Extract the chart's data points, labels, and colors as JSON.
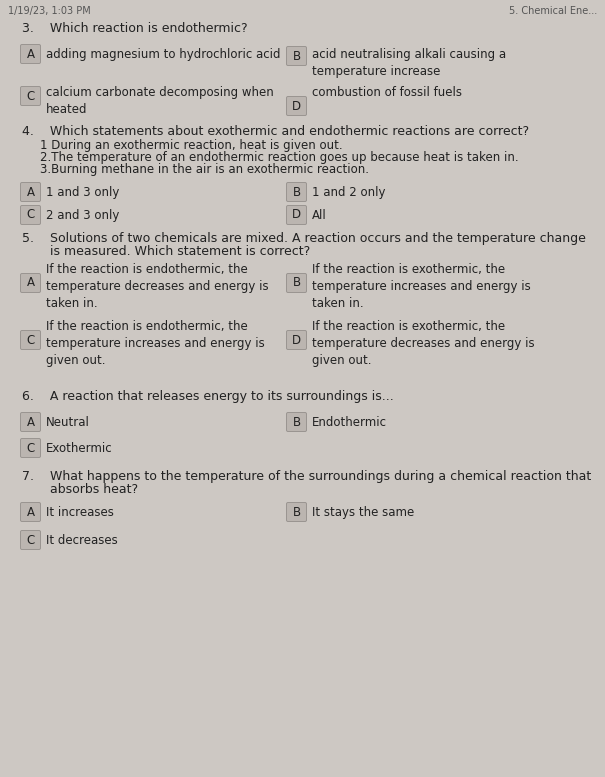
{
  "bg_color": "#cdc8c3",
  "header_left": "1/19/23, 1:03 PM",
  "header_right": "5. Chemical Ene...",
  "box_color": "#bbb5b0",
  "box_edge": "#999490",
  "text_color": "#222222",
  "body_fontsize": 8.5,
  "question_fontsize": 9.0,
  "header_fontsize": 7.0,
  "q3_title": "3.    Which reaction is endothermic?",
  "q3_A_text": "adding magnesium to hydrochloric acid",
  "q3_B_text": "acid neutralising alkali causing a\ntemperature increase",
  "q3_C_text": "calcium carbonate decomposing when\nheated",
  "q3_D_text": "combustion of fossil fuels",
  "q4_title": "4.    Which statements about exothermic and endothermic reactions are correct?",
  "q4_stmt1": "1 During an exothermic reaction, heat is given out.",
  "q4_stmt2": "2.The temperature of an endothermic reaction goes up because heat is taken in.",
  "q4_stmt3": "3.Burning methane in the air is an exothermic reaction.",
  "q4_A_text": "1 and 3 only",
  "q4_B_text": "1 and 2 only",
  "q4_C_text": "2 and 3 only",
  "q4_D_text": "All",
  "q5_title1": "5.    Solutions of two chemicals are mixed. A reaction occurs and the temperature change",
  "q5_title2": "       is measured. Which statement is correct?",
  "q5_A_text": "If the reaction is endothermic, the\ntemperature decreases and energy is\ntaken in.",
  "q5_B_text": "If the reaction is exothermic, the\ntemperature increases and energy is\ntaken in.",
  "q5_C_text": "If the reaction is endothermic, the\ntemperature increases and energy is\ngiven out.",
  "q5_D_text": "If the reaction is exothermic, the\ntemperature decreases and energy is\ngiven out.",
  "q6_title": "6.    A reaction that releases energy to its surroundings is...",
  "q6_A_text": "Neutral",
  "q6_B_text": "Endothermic",
  "q6_C_text": "Exothermic",
  "q7_title1": "7.    What happens to the temperature of the surroundings during a chemical reaction that",
  "q7_title2": "       absorbs heat?",
  "q7_A_text": "It increases",
  "q7_B_text": "It stays the same",
  "q7_C_text": "It decreases"
}
